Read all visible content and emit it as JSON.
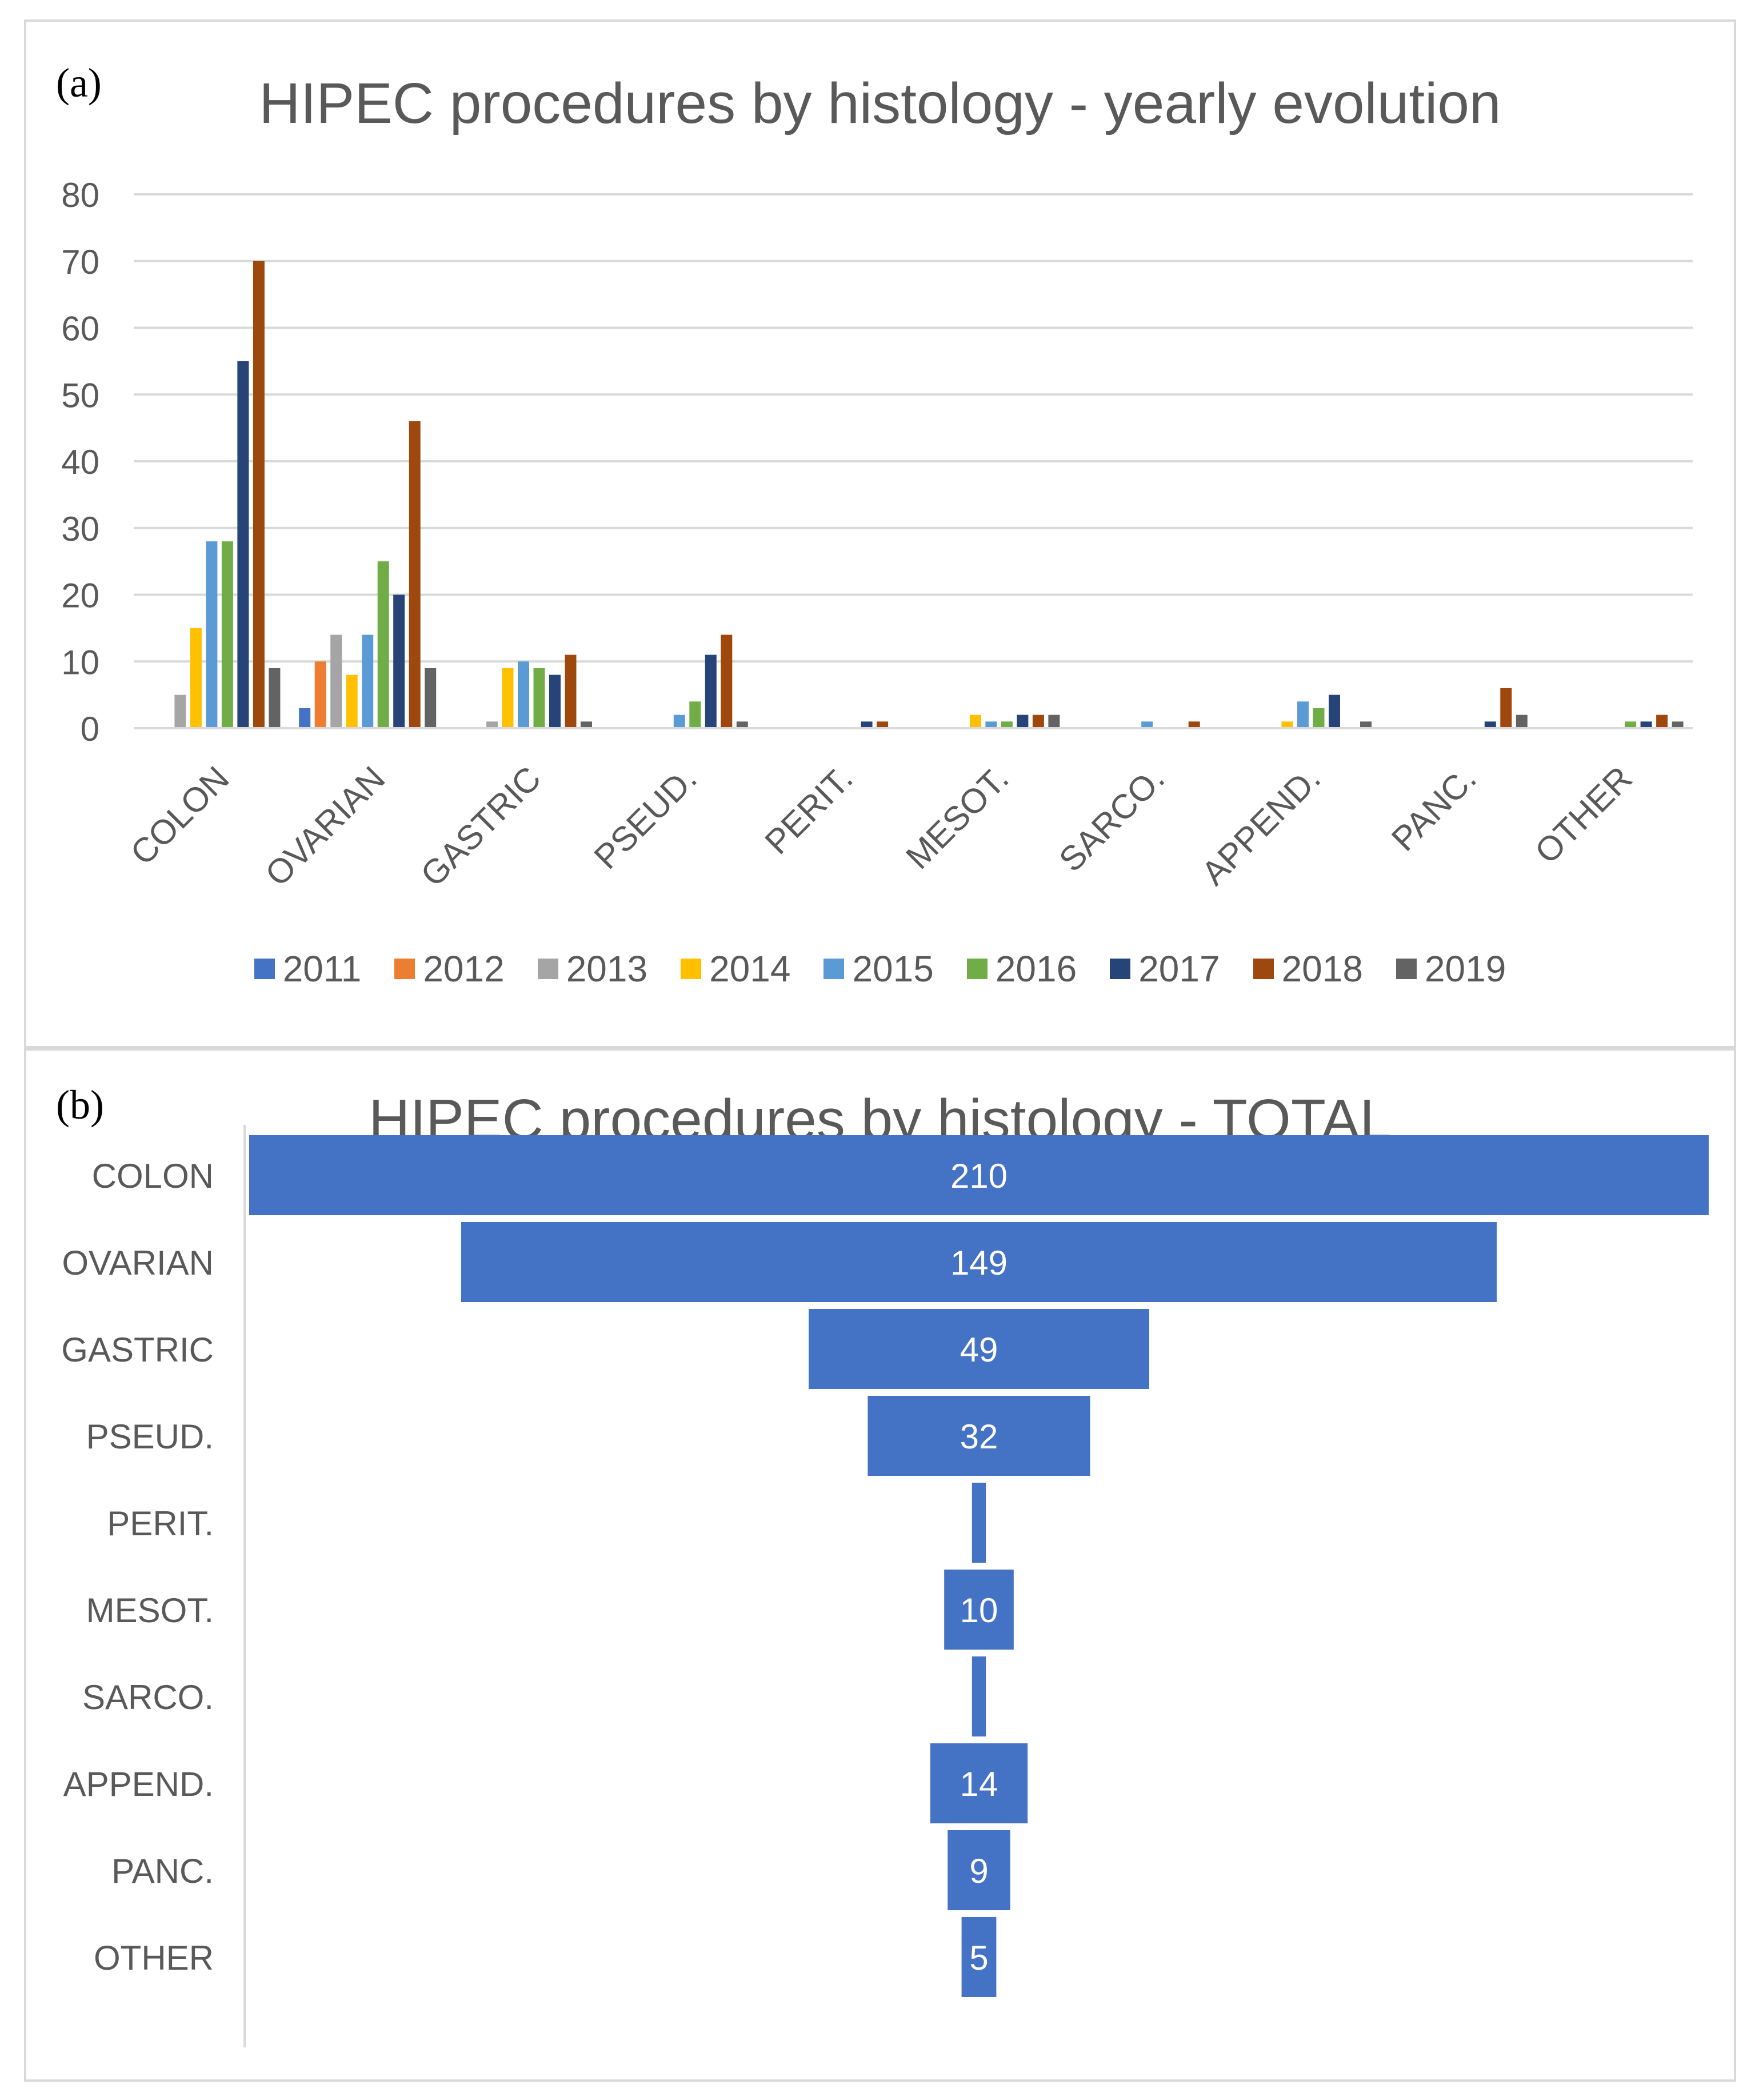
{
  "panel_a": {
    "label": "(a)",
    "title": "HIPEC procedures by histology - yearly evolution"
  },
  "panel_b": {
    "label": "(b)",
    "title": "HIPEC procedures by histology - TOTAL"
  },
  "colors": {
    "2011": "#4472C4",
    "2012": "#ED7D31",
    "2013": "#A5A5A5",
    "2014": "#FFC000",
    "2015": "#5B9BD5",
    "2016": "#70AD47",
    "2017": "#264478",
    "2018": "#9E480E",
    "2019": "#636363",
    "total_bar": "#4472C4",
    "grid": "#d9d9d9",
    "axis_text": "#595959"
  },
  "chart_data": [
    {
      "type": "bar",
      "title": "HIPEC procedures by histology - yearly evolution",
      "xlabel": "",
      "ylabel": "",
      "ylim": [
        0,
        80
      ],
      "yticks": [
        "0",
        "10",
        "20",
        "30",
        "40",
        "50",
        "60",
        "70",
        "80"
      ],
      "grid": true,
      "legend_position": "bottom",
      "categories": [
        "COLON",
        "OVARIAN",
        "GASTRIC",
        "PSEUD.",
        "PERIT.",
        "MESOT.",
        "SARCO.",
        "APPEND.",
        "PANC.",
        "OTHER"
      ],
      "series": [
        {
          "name": "2011",
          "values": [
            0,
            3,
            0,
            0,
            0,
            0,
            0,
            0,
            0,
            0
          ]
        },
        {
          "name": "2012",
          "values": [
            0,
            10,
            0,
            0,
            0,
            0,
            0,
            0,
            0,
            0
          ]
        },
        {
          "name": "2013",
          "values": [
            5,
            14,
            1,
            0,
            0,
            0,
            0,
            0,
            0,
            0
          ]
        },
        {
          "name": "2014",
          "values": [
            15,
            8,
            9,
            0,
            0,
            2,
            0,
            1,
            0,
            0
          ]
        },
        {
          "name": "2015",
          "values": [
            28,
            14,
            10,
            2,
            0,
            1,
            1,
            4,
            0,
            0
          ]
        },
        {
          "name": "2016",
          "values": [
            28,
            25,
            9,
            4,
            0,
            1,
            0,
            3,
            0,
            1
          ]
        },
        {
          "name": "2017",
          "values": [
            55,
            20,
            8,
            11,
            1,
            2,
            0,
            5,
            1,
            1
          ]
        },
        {
          "name": "2018",
          "values": [
            70,
            46,
            11,
            14,
            1,
            2,
            1,
            0,
            6,
            2
          ]
        },
        {
          "name": "2019",
          "values": [
            9,
            9,
            1,
            1,
            0,
            2,
            0,
            1,
            2,
            1
          ]
        }
      ]
    },
    {
      "type": "bar",
      "orientation": "horizontal-centered",
      "title": "HIPEC procedures by histology - TOTAL",
      "categories": [
        "COLON",
        "OVARIAN",
        "GASTRIC",
        "PSEUD.",
        "PERIT.",
        "MESOT.",
        "SARCO.",
        "APPEND.",
        "PANC.",
        "OTHER"
      ],
      "values": [
        210,
        149,
        49,
        32,
        2,
        10,
        2,
        14,
        9,
        5
      ],
      "data_labels": [
        "210",
        "149",
        "49",
        "32",
        "",
        "10",
        "",
        "14",
        "9",
        "5"
      ]
    }
  ]
}
